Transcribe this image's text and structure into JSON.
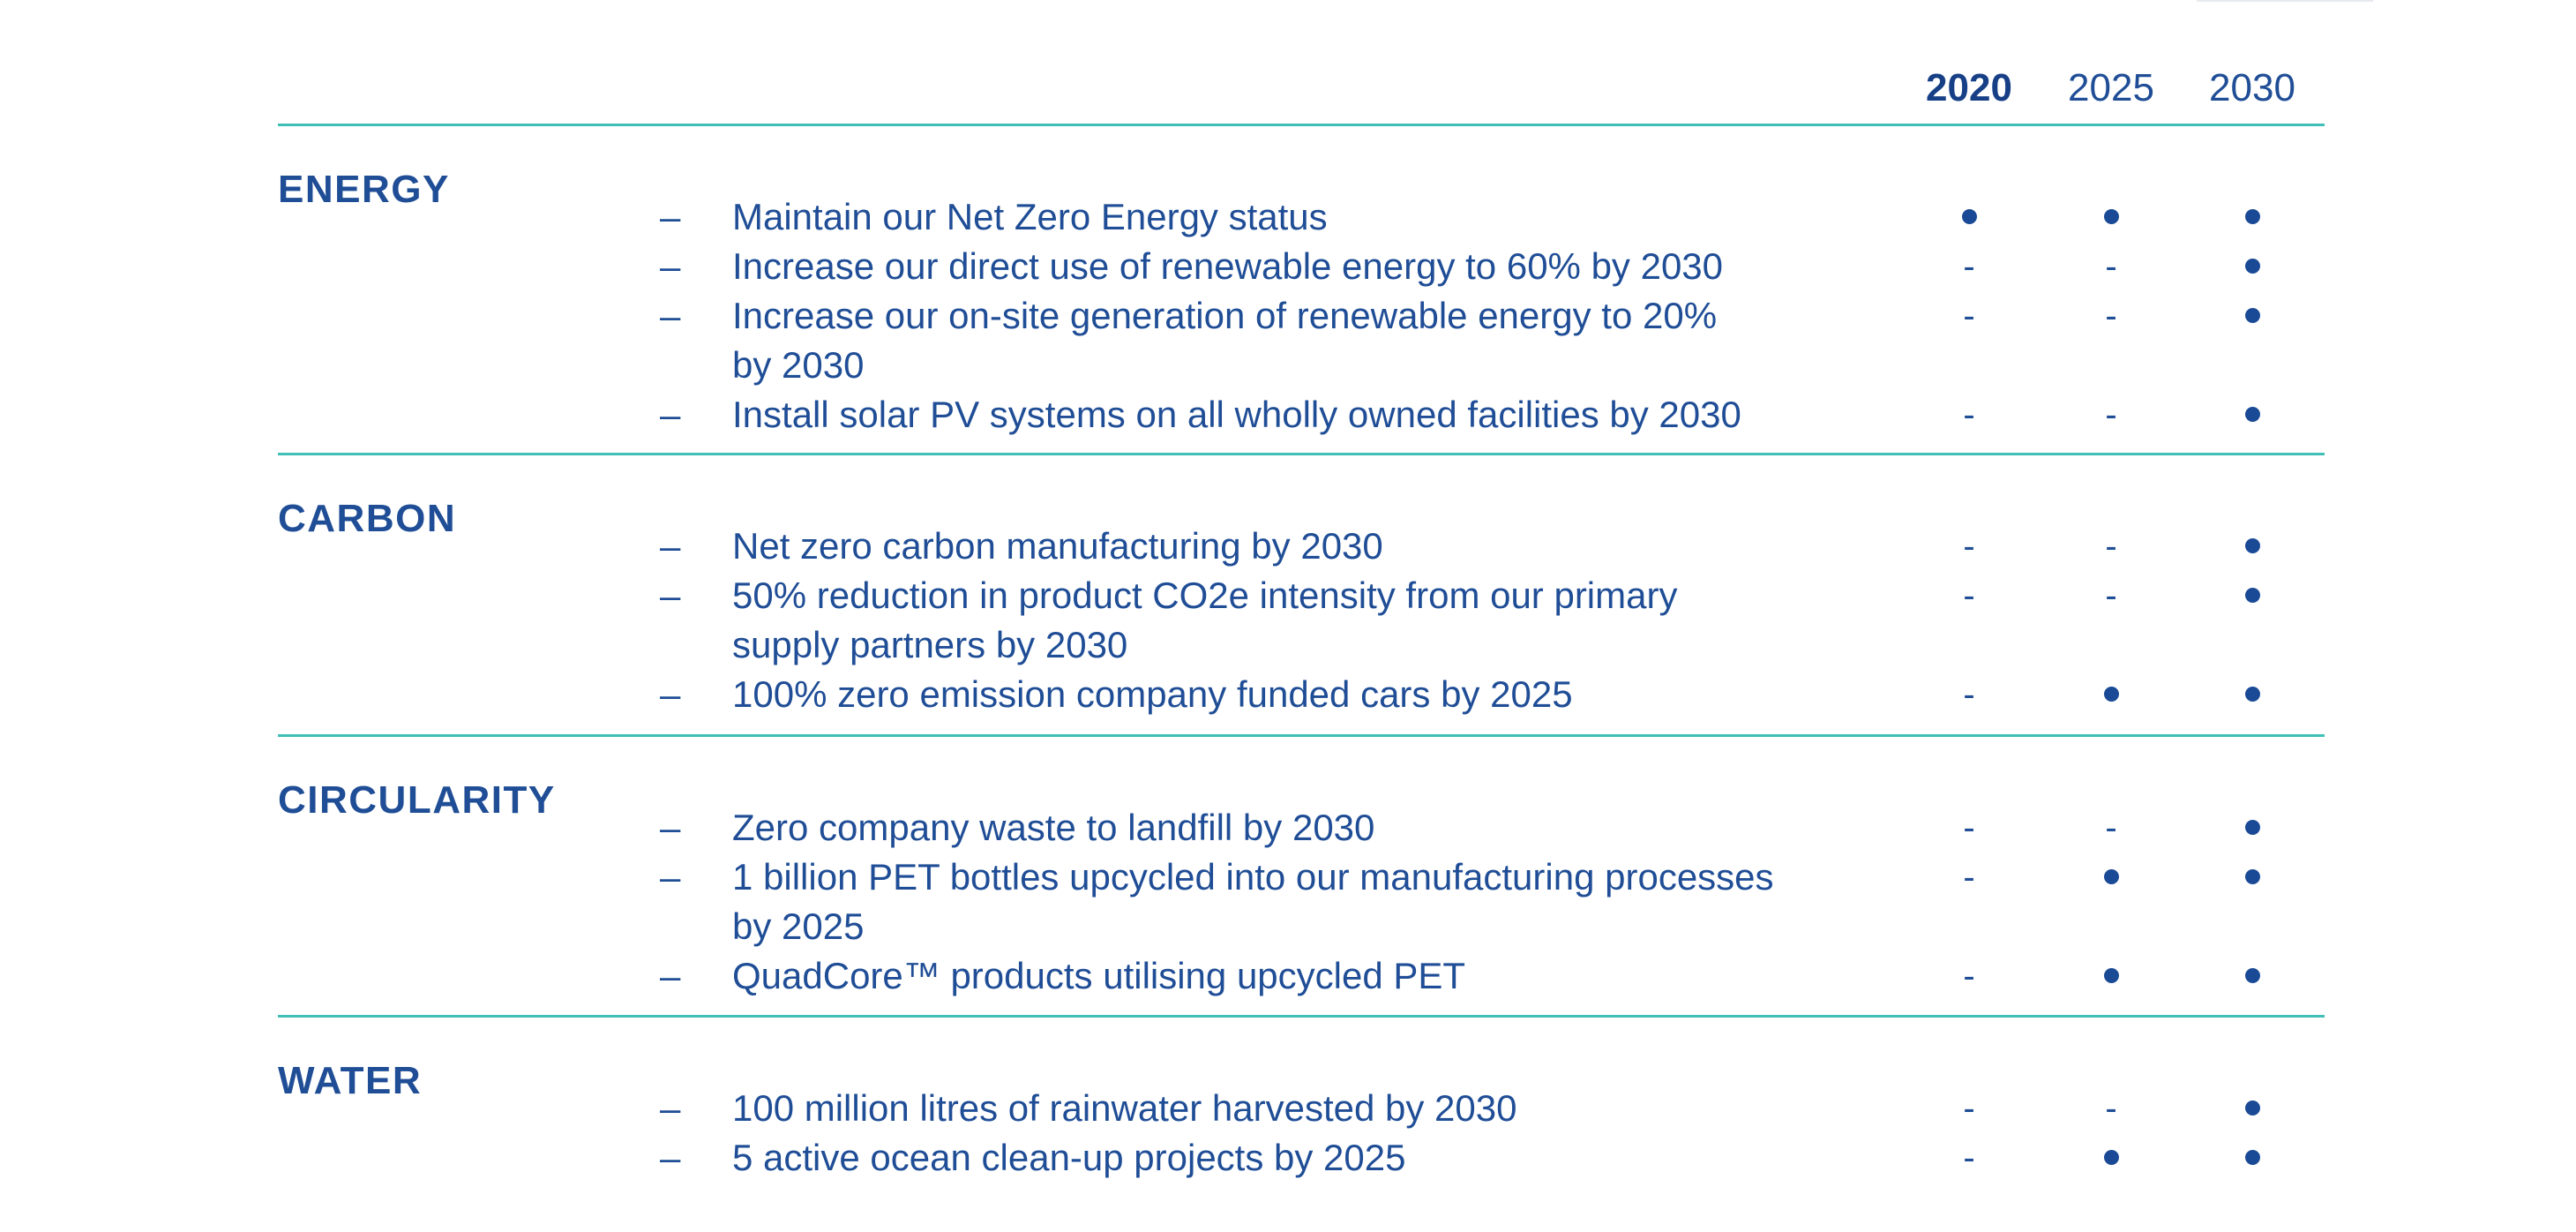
{
  "header": {
    "years": [
      "2020",
      "2025",
      "2030"
    ]
  },
  "sections": [
    {
      "title": "ENERGY",
      "rows": [
        {
          "lines": [
            "Maintain our Net Zero Energy status"
          ],
          "marks": [
            "dot",
            "dot",
            "dot"
          ]
        },
        {
          "lines": [
            "Increase our direct use of renewable energy to 60% by 2030"
          ],
          "marks": [
            "-",
            "-",
            "dot"
          ]
        },
        {
          "lines": [
            "Increase our on-site generation of renewable energy to 20%",
            "by 2030"
          ],
          "marks": [
            "-",
            "-",
            "dot"
          ]
        },
        {
          "lines": [
            "Install solar PV systems on all wholly owned facilities by 2030"
          ],
          "marks": [
            "-",
            "-",
            "dot"
          ]
        }
      ]
    },
    {
      "title": "CARBON",
      "rows": [
        {
          "lines": [
            "Net zero carbon manufacturing by 2030"
          ],
          "marks": [
            "-",
            "-",
            "dot"
          ]
        },
        {
          "lines": [
            "50% reduction in product CO2e intensity from our primary",
            "supply partners by 2030"
          ],
          "marks": [
            "-",
            "-",
            "dot"
          ]
        },
        {
          "lines": [
            "100% zero emission company funded cars by 2025"
          ],
          "marks": [
            "-",
            "dot",
            "dot"
          ]
        }
      ]
    },
    {
      "title": "CIRCULARITY",
      "rows": [
        {
          "lines": [
            "Zero company waste to landfill by 2030"
          ],
          "marks": [
            "-",
            "-",
            "dot"
          ]
        },
        {
          "lines": [
            "1 billion PET bottles upcycled into our manufacturing processes",
            "by 2025"
          ],
          "marks": [
            "-",
            "dot",
            "dot"
          ]
        },
        {
          "lines": [
            "QuadCore™ products utilising upcycled PET"
          ],
          "marks": [
            "-",
            "dot",
            "dot"
          ]
        }
      ]
    },
    {
      "title": "WATER",
      "rows": [
        {
          "lines": [
            "100 million litres of rainwater harvested by 2030"
          ],
          "marks": [
            "-",
            "-",
            "dot"
          ]
        },
        {
          "lines": [
            "5 active ocean clean-up projects by 2025"
          ],
          "marks": [
            "-",
            "dot",
            "dot"
          ]
        }
      ]
    }
  ],
  "bullet_symbol": "–",
  "colors": {
    "text": "#1f4d96",
    "divider": "#3fbfb6",
    "dot": "#1a4a95"
  }
}
